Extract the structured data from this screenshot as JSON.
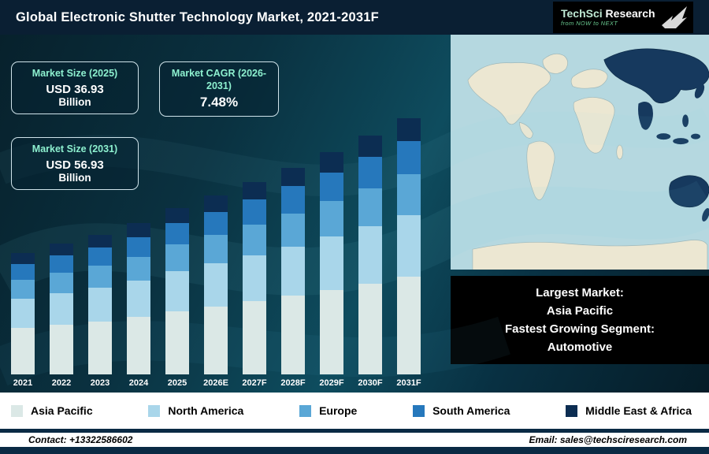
{
  "header": {
    "title": "Global Electronic Shutter Technology Market, 2021-2031F",
    "logo": {
      "brand_primary": "TechSci",
      "brand_secondary": " Research",
      "tagline": "from NOW to NEXT"
    }
  },
  "stats": [
    {
      "label": "Market Size (2025)",
      "value": "USD 36.93",
      "sub": "Billion"
    },
    {
      "label": "Market CAGR (2026-2031)",
      "value": "7.48%",
      "sub": ""
    },
    {
      "label": "Market Size (2031)",
      "value": "USD 56.93",
      "sub": "Billion"
    }
  ],
  "chart_data": {
    "type": "bar",
    "stacked": true,
    "title": "Global Electronic Shutter Technology Market, 2021-2031F (USD Billion)",
    "categories": [
      "2021",
      "2022",
      "2023",
      "2024",
      "2025",
      "2026E",
      "2027F",
      "2028F",
      "2029F",
      "2030F",
      "2031F"
    ],
    "series": [
      {
        "name": "Asia Pacific",
        "color": "#dbe8e6",
        "values": [
          10.26,
          11.02,
          11.78,
          12.73,
          14.03,
          15.08,
          16.21,
          17.42,
          18.73,
          20.13,
          21.63
        ]
      },
      {
        "name": "North America",
        "color": "#a9d6ea",
        "values": [
          6.48,
          6.96,
          7.44,
          8.04,
          8.86,
          9.53,
          10.24,
          11.0,
          11.83,
          12.71,
          13.66
        ]
      },
      {
        "name": "Europe",
        "color": "#5aa7d6",
        "values": [
          4.32,
          4.64,
          4.96,
          5.36,
          5.91,
          6.35,
          6.83,
          7.34,
          7.88,
          8.48,
          9.11
        ]
      },
      {
        "name": "South America",
        "color": "#2678bc",
        "values": [
          3.51,
          3.77,
          4.03,
          4.36,
          4.8,
          5.16,
          5.55,
          5.96,
          6.41,
          6.89,
          7.4
        ]
      },
      {
        "name": "Middle East & Africa",
        "color": "#0c2d52",
        "values": [
          2.43,
          2.61,
          2.79,
          3.02,
          3.32,
          3.57,
          3.84,
          4.13,
          4.43,
          4.77,
          5.12
        ]
      }
    ],
    "totals": [
      27.0,
      29.0,
      31.0,
      33.5,
      36.93,
      39.69,
      42.66,
      45.85,
      49.28,
      52.97,
      56.93
    ],
    "ylim": [
      0,
      60
    ],
    "xlabel": "",
    "ylabel": "",
    "grid": false,
    "legend_position": "bottom"
  },
  "callout": {
    "lines": [
      "Largest Market:",
      "Asia Pacific",
      "Fastest Growing Segment:",
      "Automotive"
    ]
  },
  "footer": {
    "contact": "Contact: +13322586602",
    "email": "Email: sales@techsciresearch.com"
  }
}
